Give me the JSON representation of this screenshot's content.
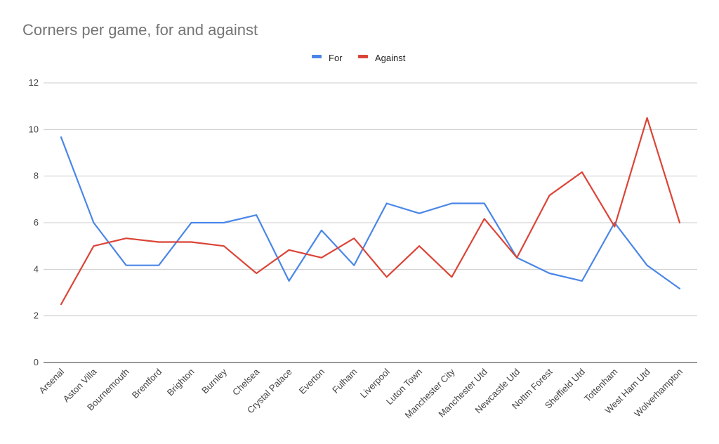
{
  "chart_data": {
    "type": "line",
    "title": "Corners per game, for and against",
    "categories": [
      "Arsenal",
      "Aston Villa",
      "Bournemouth",
      "Brentford",
      "Brighton",
      "Burnley",
      "Chelsea",
      "Crystal Palace",
      "Everton",
      "Fulham",
      "Liverpool",
      "Luton Town",
      "Manchester City",
      "Manchester Utd",
      "Newcastle Utd",
      "Nottm Forest",
      "Sheffield Utd",
      "Tottenham",
      "West Ham Utd",
      "Wolverhampton"
    ],
    "series": [
      {
        "name": "For",
        "color": "#4a86e8",
        "values": [
          9.67,
          6.0,
          4.17,
          4.17,
          6.0,
          6.0,
          6.33,
          3.5,
          5.67,
          4.17,
          6.83,
          6.4,
          6.83,
          6.83,
          4.5,
          3.83,
          3.5,
          6.0,
          4.17,
          3.17
        ]
      },
      {
        "name": "Against",
        "color": "#db4437",
        "values": [
          2.5,
          5.0,
          5.33,
          5.17,
          5.17,
          5.0,
          3.83,
          4.83,
          4.5,
          5.33,
          3.67,
          5.0,
          3.67,
          6.17,
          4.5,
          7.17,
          8.17,
          5.83,
          10.5,
          6.0
        ]
      }
    ],
    "ylim": [
      0,
      12
    ],
    "yticks": [
      "0",
      "2",
      "4",
      "6",
      "8",
      "10",
      "12"
    ],
    "grid": true,
    "legend_position": "top-center",
    "xlabel": "",
    "ylabel": ""
  }
}
